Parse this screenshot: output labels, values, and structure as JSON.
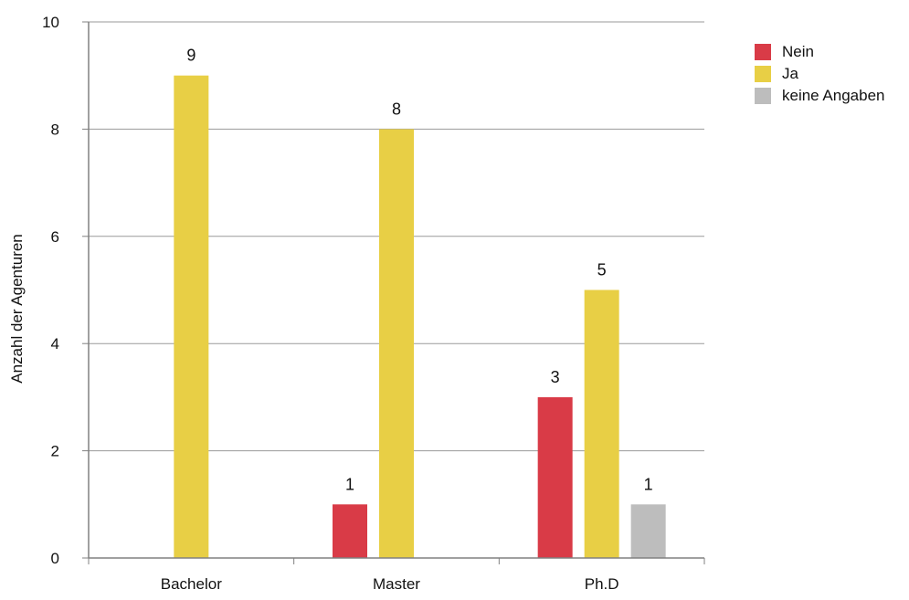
{
  "chart_data": {
    "type": "bar",
    "categories": [
      "Bachelor",
      "Master",
      "Ph.D"
    ],
    "series": [
      {
        "name": "Nein",
        "color": "#d93b47",
        "values": [
          0,
          1,
          3
        ]
      },
      {
        "name": "Ja",
        "color": "#e8cf45",
        "values": [
          9,
          8,
          5
        ]
      },
      {
        "name": "keine Angaben",
        "color": "#bdbdbd",
        "values": [
          0,
          0,
          1
        ]
      }
    ],
    "ylabel": "Anzahl der Agenturen",
    "xlabel": "",
    "ylim": [
      0,
      10
    ],
    "yticks": [
      0,
      2,
      4,
      6,
      8,
      10
    ],
    "grid": true,
    "legend_position": "top-right",
    "data_labels": true
  }
}
